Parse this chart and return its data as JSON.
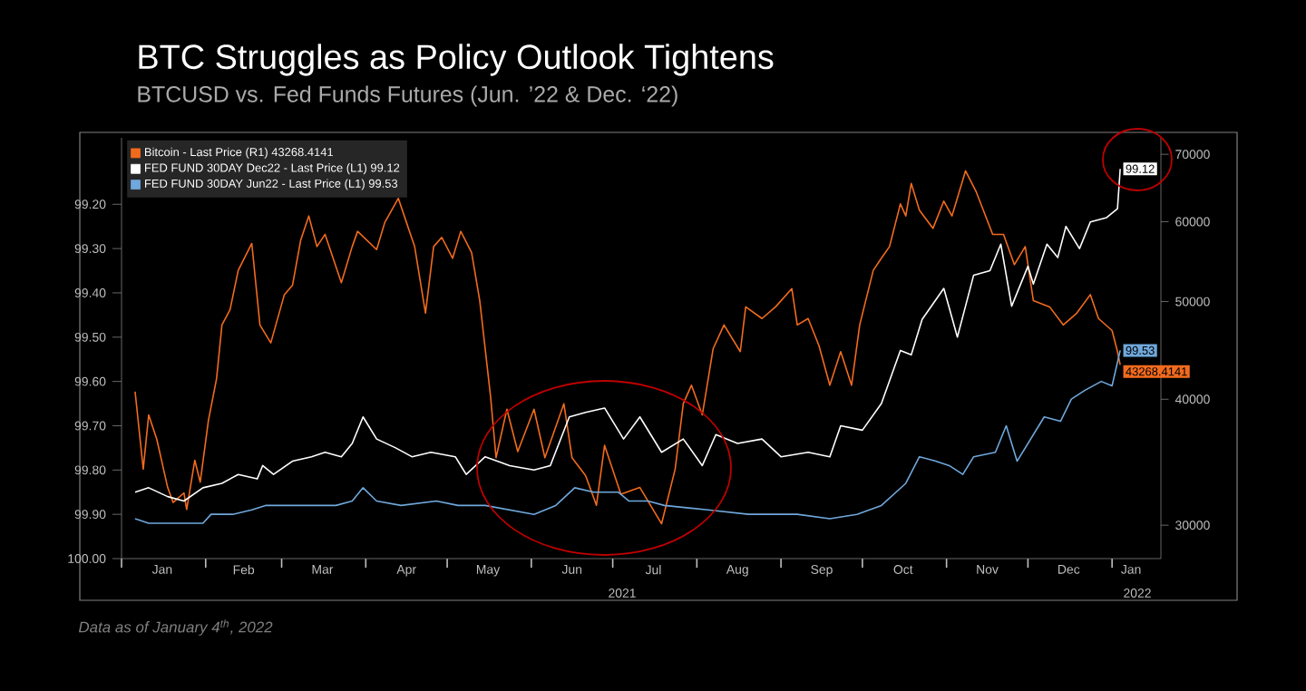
{
  "chart_data": {
    "type": "line",
    "title": "BTC Struggles as Policy Outlook Tightens",
    "subtitle": "BTCUSD vs. Fed Funds Futures (Jun. ’22 & Dec. ‘22)",
    "annotations": [
      "2021",
      "2022",
      "*Data as of January 4$^{th}$, 2022*"
    ],
    "xlim": [
      "2021-01-01",
      "2022-01-19"
    ],
    "xticks": [
      {
        "value": "2021-01-01",
        "label": null
      },
      {
        "value": "2021-02-01",
        "label": null
      },
      {
        "value": "2021-03-01",
        "label": null
      },
      {
        "value": "2021-04-01",
        "label": null
      },
      {
        "value": "2021-05-01",
        "label": null
      },
      {
        "value": "2021-06-01",
        "label": null
      },
      {
        "value": "2021-07-01",
        "label": null
      },
      {
        "value": "2021-08-01",
        "label": null
      },
      {
        "value": "2021-09-01",
        "label": null
      },
      {
        "value": "2021-10-01",
        "label": null
      },
      {
        "value": "2021-11-01",
        "label": null
      },
      {
        "value": "2021-12-01",
        "label": null
      },
      {
        "value": "2022-01-01",
        "label": null
      },
      {
        "value": "2021-01-16",
        "label": "Jan"
      },
      {
        "value": "2021-02-15",
        "label": "Feb"
      },
      {
        "value": "2021-03-16",
        "label": "Mar"
      },
      {
        "value": "2021-04-16",
        "label": "Apr"
      },
      {
        "value": "2021-05-16",
        "label": "May"
      },
      {
        "value": "2021-06-16",
        "label": "Jun"
      },
      {
        "value": "2021-07-16",
        "label": "Jul"
      },
      {
        "value": "2021-08-16",
        "label": "Aug"
      },
      {
        "value": "2021-09-16",
        "label": "Sep"
      },
      {
        "value": "2021-10-16",
        "label": "Oct"
      },
      {
        "value": "2021-11-16",
        "label": "Nov"
      },
      {
        "value": "2021-12-16",
        "label": "Dec"
      },
      {
        "value": "2022-01-08",
        "label": "Jan"
      }
    ],
    "ylim": [
      100.0,
      99.05
    ],
    "yticks": [
      {
        "value": 99.2,
        "label": "99.20"
      },
      {
        "value": 99.3,
        "label": "99.30"
      },
      {
        "value": 99.4,
        "label": "99.40"
      },
      {
        "value": 99.5,
        "label": "99.50"
      },
      {
        "value": 99.6,
        "label": "99.60"
      },
      {
        "value": 99.7,
        "label": "99.70"
      },
      {
        "value": 99.8,
        "label": "99.80"
      },
      {
        "value": 99.9,
        "label": "99.90"
      },
      {
        "value": 100.0,
        "label": "100.00"
      }
    ],
    "y2lim": [
      27800,
      72700
    ],
    "y2ticks": [
      30000,
      40000,
      50000,
      60000,
      70000
    ],
    "log": "y2",
    "legend": "top left",
    "series": [
      {
        "name": "Bitcoin - Last Price (R1)    43268.4141",
        "color": "#f26b1d",
        "axis": "y2",
        "x": [
          "2021-01-06",
          "2021-01-09",
          "2021-01-11",
          "2021-01-14",
          "2021-01-18",
          "2021-01-20",
          "2021-01-24",
          "2021-01-25",
          "2021-01-28",
          "2021-01-30",
          "2021-02-02",
          "2021-02-05",
          "2021-02-07",
          "2021-02-10",
          "2021-02-13",
          "2021-02-18",
          "2021-02-21",
          "2021-02-25",
          "2021-03-02",
          "2021-03-05",
          "2021-03-08",
          "2021-03-11",
          "2021-03-14",
          "2021-03-17",
          "2021-03-23",
          "2021-03-27",
          "2021-03-29",
          "2021-04-05",
          "2021-04-08",
          "2021-04-13",
          "2021-04-16",
          "2021-04-19",
          "2021-04-23",
          "2021-04-26",
          "2021-04-29",
          "2021-05-03",
          "2021-05-06",
          "2021-05-10",
          "2021-05-13",
          "2021-05-17",
          "2021-05-19",
          "2021-05-23",
          "2021-05-27",
          "2021-06-02",
          "2021-06-06",
          "2021-06-13",
          "2021-06-16",
          "2021-06-21",
          "2021-06-25",
          "2021-06-28",
          "2021-07-04",
          "2021-07-11",
          "2021-07-19",
          "2021-07-24",
          "2021-07-27",
          "2021-07-30",
          "2021-08-03",
          "2021-08-07",
          "2021-08-11",
          "2021-08-17",
          "2021-08-19",
          "2021-08-25",
          "2021-08-30",
          "2021-09-05",
          "2021-09-07",
          "2021-09-11",
          "2021-09-15",
          "2021-09-19",
          "2021-09-23",
          "2021-09-27",
          "2021-09-30",
          "2021-10-05",
          "2021-10-08",
          "2021-10-11",
          "2021-10-15",
          "2021-10-17",
          "2021-10-19",
          "2021-10-22",
          "2021-10-27",
          "2021-10-31",
          "2021-11-03",
          "2021-11-08",
          "2021-11-12",
          "2021-11-18",
          "2021-11-22",
          "2021-11-26",
          "2021-11-30",
          "2021-12-03",
          "2021-12-09",
          "2021-12-14",
          "2021-12-19",
          "2021-12-24",
          "2021-12-27",
          "2022-01-01",
          "2022-01-03",
          "2022-01-04"
        ],
        "values": [
          40700,
          34100,
          38600,
          36500,
          32700,
          31600,
          32300,
          31100,
          34800,
          33100,
          38100,
          41900,
          47400,
          49100,
          53700,
          57100,
          47400,
          45500,
          50800,
          51900,
          57500,
          60800,
          56700,
          58300,
          52200,
          56700,
          58700,
          56300,
          59900,
          63300,
          59900,
          56700,
          48700,
          56700,
          57900,
          55200,
          58700,
          55900,
          50100,
          40200,
          35000,
          39100,
          35500,
          39100,
          35000,
          39600,
          35000,
          33600,
          31400,
          36000,
          32200,
          32700,
          30100,
          34100,
          39600,
          41300,
          38600,
          44900,
          47400,
          44600,
          49400,
          48100,
          49400,
          51500,
          47400,
          48100,
          45200,
          41300,
          44600,
          41300,
          47400,
          53700,
          55200,
          56700,
          62500,
          60800,
          65500,
          61600,
          59100,
          62900,
          60800,
          67400,
          64200,
          58300,
          58300,
          54400,
          56700,
          50100,
          49400,
          47400,
          48700,
          50800,
          48100,
          46800,
          44600,
          43268.4141
        ],
        "value_labels": [
          null,
          null,
          null,
          null,
          null,
          null,
          null,
          null,
          null,
          null,
          null,
          null,
          null,
          null,
          null,
          null,
          null,
          null,
          null,
          null,
          null,
          null,
          null,
          null,
          null,
          null,
          null,
          null,
          null,
          null,
          null,
          null,
          null,
          null,
          null,
          null,
          null,
          null,
          null,
          null,
          null,
          null,
          null,
          null,
          null,
          null,
          null,
          null,
          null,
          null,
          null,
          null,
          null,
          null,
          null,
          null,
          null,
          null,
          null,
          null,
          null,
          null,
          null,
          null,
          null,
          null,
          null,
          null,
          null,
          null,
          null,
          null,
          null,
          null,
          null,
          null,
          null,
          null,
          null,
          null,
          null,
          null,
          null,
          null,
          null,
          null,
          null,
          null,
          null,
          null,
          null,
          null,
          null,
          null,
          null,
          "43268.4141"
        ]
      },
      {
        "name": "FED FUND 30DAY    Dec22 - Last Price (L1)    99.12",
        "color": "#ffffff",
        "x": [
          "2021-01-06",
          "2021-01-11",
          "2021-01-18",
          "2021-01-24",
          "2021-01-31",
          "2021-02-07",
          "2021-02-13",
          "2021-02-20",
          "2021-02-22",
          "2021-02-26",
          "2021-03-05",
          "2021-03-12",
          "2021-03-17",
          "2021-03-23",
          "2021-03-27",
          "2021-03-31",
          "2021-04-05",
          "2021-04-12",
          "2021-04-18",
          "2021-04-25",
          "2021-05-04",
          "2021-05-08",
          "2021-05-15",
          "2021-05-24",
          "2021-06-02",
          "2021-06-08",
          "2021-06-15",
          "2021-06-21",
          "2021-06-28",
          "2021-07-05",
          "2021-07-11",
          "2021-07-19",
          "2021-07-27",
          "2021-08-03",
          "2021-08-08",
          "2021-08-16",
          "2021-08-25",
          "2021-09-01",
          "2021-09-11",
          "2021-09-19",
          "2021-09-23",
          "2021-10-01",
          "2021-10-08",
          "2021-10-15",
          "2021-10-19",
          "2021-10-23",
          "2021-10-31",
          "2021-11-05",
          "2021-11-08",
          "2021-11-11",
          "2021-11-17",
          "2021-11-21",
          "2021-11-25",
          "2021-12-01",
          "2021-12-03",
          "2021-12-08",
          "2021-12-12",
          "2021-12-15",
          "2021-12-20",
          "2021-12-24",
          "2021-12-30",
          "2022-01-03",
          "2022-01-04"
        ],
        "values": [
          99.85,
          99.84,
          99.86,
          99.87,
          99.84,
          99.83,
          99.81,
          99.82,
          99.79,
          99.81,
          99.78,
          99.77,
          99.76,
          99.77,
          99.74,
          99.68,
          99.73,
          99.75,
          99.77,
          99.76,
          99.77,
          99.81,
          99.77,
          99.79,
          99.8,
          99.79,
          99.68,
          99.67,
          99.66,
          99.73,
          99.68,
          99.76,
          99.73,
          99.79,
          99.72,
          99.74,
          99.73,
          99.77,
          99.76,
          99.77,
          99.7,
          99.71,
          99.65,
          99.53,
          99.54,
          99.46,
          99.39,
          99.5,
          99.43,
          99.36,
          99.35,
          99.29,
          99.43,
          99.34,
          99.38,
          99.29,
          99.32,
          99.25,
          99.3,
          99.24,
          99.23,
          99.21,
          99.12
        ],
        "value_labels": [
          null,
          null,
          null,
          null,
          null,
          null,
          null,
          null,
          null,
          null,
          null,
          null,
          null,
          null,
          null,
          null,
          null,
          null,
          null,
          null,
          null,
          null,
          null,
          null,
          null,
          null,
          null,
          null,
          null,
          null,
          null,
          null,
          null,
          null,
          null,
          null,
          null,
          null,
          null,
          null,
          null,
          null,
          null,
          null,
          null,
          null,
          null,
          null,
          null,
          null,
          null,
          null,
          null,
          null,
          null,
          null,
          null,
          null,
          null,
          null,
          null,
          null,
          "99.12"
        ]
      },
      {
        "name": "FED FUND 30DAY    Jun22 - Last Price (L1)    99.53",
        "color": "#6fa8dc",
        "x": [
          "2021-01-06",
          "2021-01-11",
          "2021-01-18",
          "2021-01-24",
          "2021-01-31",
          "2021-02-03",
          "2021-02-11",
          "2021-02-18",
          "2021-02-23",
          "2021-03-01",
          "2021-03-10",
          "2021-03-21",
          "2021-03-27",
          "2021-03-31",
          "2021-04-05",
          "2021-04-14",
          "2021-04-27",
          "2021-05-05",
          "2021-05-15",
          "2021-06-02",
          "2021-06-10",
          "2021-06-17",
          "2021-06-24",
          "2021-07-03",
          "2021-07-07",
          "2021-07-14",
          "2021-07-20",
          "2021-08-05",
          "2021-08-20",
          "2021-09-07",
          "2021-09-19",
          "2021-09-29",
          "2021-10-08",
          "2021-10-17",
          "2021-10-22",
          "2021-10-28",
          "2021-11-02",
          "2021-11-07",
          "2021-11-11",
          "2021-11-19",
          "2021-11-23",
          "2021-11-27",
          "2021-12-02",
          "2021-12-07",
          "2021-12-13",
          "2021-12-17",
          "2021-12-22",
          "2021-12-28",
          "2022-01-01",
          "2022-01-04"
        ],
        "values": [
          99.91,
          99.92,
          99.92,
          99.92,
          99.92,
          99.9,
          99.9,
          99.89,
          99.88,
          99.88,
          99.88,
          99.88,
          99.87,
          99.84,
          99.87,
          99.88,
          99.87,
          99.88,
          99.88,
          99.9,
          99.88,
          99.84,
          99.85,
          99.85,
          99.87,
          99.87,
          99.88,
          99.89,
          99.9,
          99.9,
          99.91,
          99.9,
          99.88,
          99.83,
          99.77,
          99.78,
          99.79,
          99.81,
          99.77,
          99.76,
          99.7,
          99.78,
          99.73,
          99.68,
          99.69,
          99.64,
          99.62,
          99.6,
          99.61,
          99.53
        ],
        "value_labels": [
          null,
          null,
          null,
          null,
          null,
          null,
          null,
          null,
          null,
          null,
          null,
          null,
          null,
          null,
          null,
          null,
          null,
          null,
          null,
          null,
          null,
          null,
          null,
          null,
          null,
          null,
          null,
          null,
          null,
          null,
          null,
          null,
          null,
          null,
          null,
          null,
          null,
          null,
          null,
          null,
          null,
          null,
          null,
          null,
          null,
          null,
          null,
          null,
          null,
          "99.53"
        ]
      }
    ]
  }
}
